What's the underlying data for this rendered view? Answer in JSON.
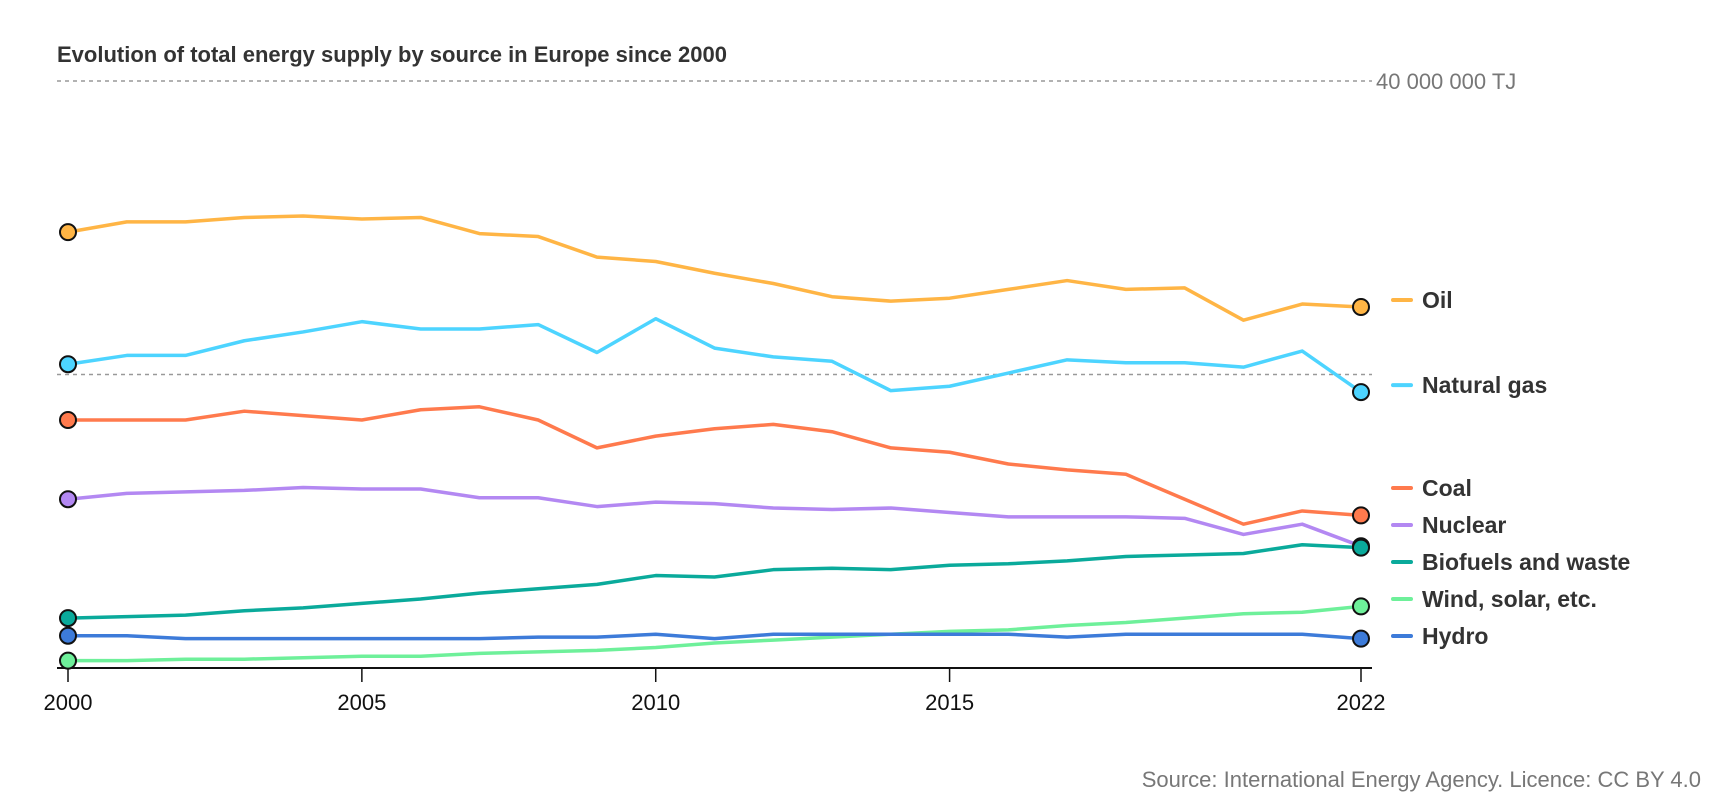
{
  "chart_data": {
    "type": "line",
    "title": "Evolution of total energy supply by source in Europe since 2000",
    "source": "Source: International Energy Agency. Licence: CC BY 4.0",
    "xlabel": "",
    "ylabel": "",
    "unit": "TJ",
    "ylim": [
      0,
      40000000
    ],
    "gridlines": [
      {
        "value": 40000000,
        "label": "40 000 000 TJ"
      },
      {
        "value": 20000000,
        "label": ""
      }
    ],
    "x": [
      2000,
      2001,
      2002,
      2003,
      2004,
      2005,
      2006,
      2007,
      2008,
      2009,
      2010,
      2011,
      2012,
      2013,
      2014,
      2015,
      2016,
      2017,
      2018,
      2019,
      2020,
      2021,
      2022
    ],
    "x_ticks": [
      2000,
      2005,
      2010,
      2015,
      2022
    ],
    "legend_position": "right",
    "series": [
      {
        "name": "Oil",
        "color": "#FFB545",
        "values": [
          29.7,
          30.4,
          30.4,
          30.7,
          30.8,
          30.6,
          30.7,
          29.6,
          29.4,
          28.0,
          27.7,
          26.9,
          26.2,
          25.3,
          25.0,
          25.2,
          25.8,
          26.4,
          25.8,
          25.9,
          23.7,
          24.8,
          24.6
        ]
      },
      {
        "name": "Natural gas",
        "color": "#4DD4FF",
        "values": [
          20.7,
          21.3,
          21.3,
          22.3,
          22.9,
          23.6,
          23.1,
          23.1,
          23.4,
          21.5,
          23.8,
          21.8,
          21.2,
          20.9,
          18.9,
          19.2,
          20.1,
          21.0,
          20.8,
          20.8,
          20.5,
          21.6,
          18.8
        ]
      },
      {
        "name": "Coal",
        "color": "#FF7A4D",
        "values": [
          16.9,
          16.9,
          16.9,
          17.5,
          17.2,
          16.9,
          17.6,
          17.8,
          16.9,
          15.0,
          15.8,
          16.3,
          16.6,
          16.1,
          15.0,
          14.7,
          13.9,
          13.5,
          13.2,
          11.5,
          9.8,
          10.7,
          10.4
        ]
      },
      {
        "name": "Nuclear",
        "color": "#B388F2",
        "values": [
          11.5,
          11.9,
          12.0,
          12.1,
          12.3,
          12.2,
          12.2,
          11.6,
          11.6,
          11.0,
          11.3,
          11.2,
          10.9,
          10.8,
          10.9,
          10.6,
          10.3,
          10.3,
          10.3,
          10.2,
          9.1,
          9.8,
          8.3
        ]
      },
      {
        "name": "Biofuels and waste",
        "color": "#0AAA9B",
        "values": [
          3.4,
          3.5,
          3.6,
          3.9,
          4.1,
          4.4,
          4.7,
          5.1,
          5.4,
          5.7,
          6.3,
          6.2,
          6.7,
          6.8,
          6.7,
          7.0,
          7.1,
          7.3,
          7.6,
          7.7,
          7.8,
          8.4,
          8.2
        ]
      },
      {
        "name": "Wind, solar, etc.",
        "color": "#6EF09A",
        "values": [
          0.5,
          0.5,
          0.6,
          0.6,
          0.7,
          0.8,
          0.8,
          1.0,
          1.1,
          1.2,
          1.4,
          1.7,
          1.9,
          2.1,
          2.3,
          2.5,
          2.6,
          2.9,
          3.1,
          3.4,
          3.7,
          3.8,
          4.2
        ]
      },
      {
        "name": "Hydro",
        "color": "#3D7BD9",
        "values": [
          2.2,
          2.2,
          2.0,
          2.0,
          2.0,
          2.0,
          2.0,
          2.0,
          2.1,
          2.1,
          2.3,
          2.0,
          2.3,
          2.3,
          2.3,
          2.3,
          2.3,
          2.1,
          2.3,
          2.3,
          2.3,
          2.3,
          2.0
        ]
      }
    ],
    "values_unit_note": "series values in millions of TJ"
  }
}
